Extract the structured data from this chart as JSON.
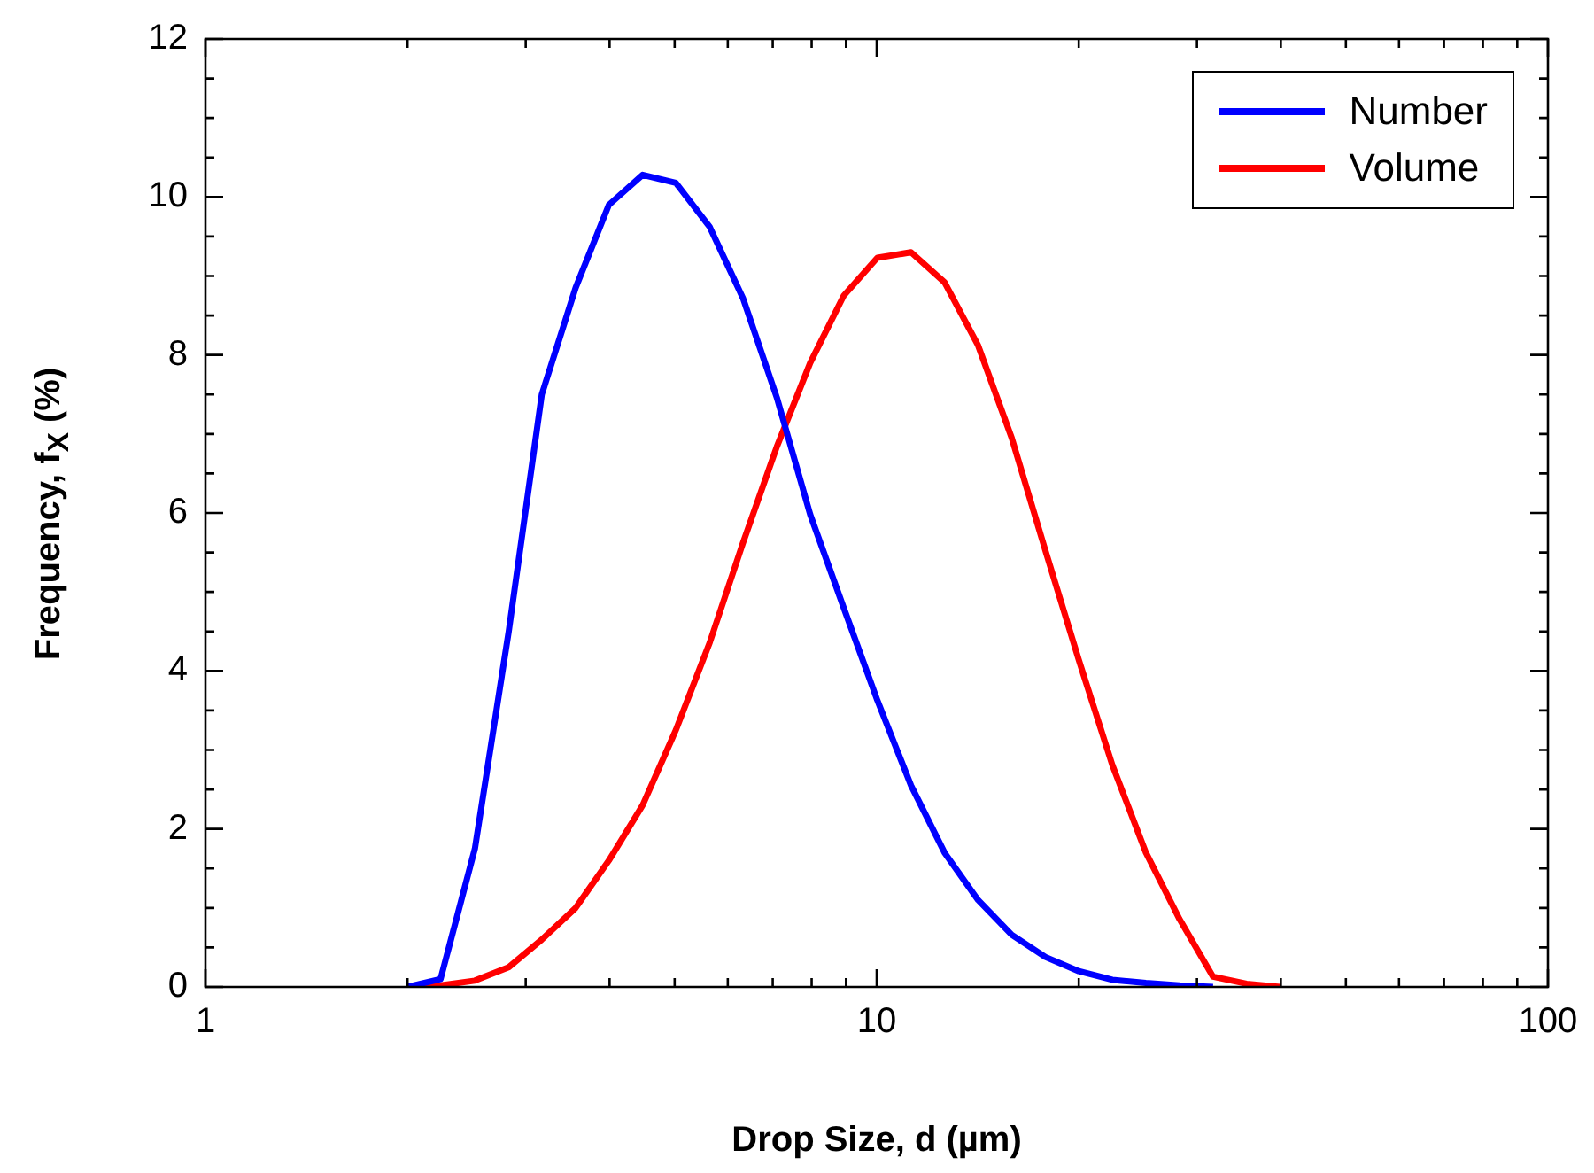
{
  "chart_data": {
    "type": "line",
    "xlabel": "Drop Size, d (µm)",
    "ylabel": "Frequency, f$_{X}$ (%)",
    "log": "x",
    "grid": false,
    "legend": "top right",
    "marker": "none",
    "line_style": "solid",
    "xlim": [
      1,
      100
    ],
    "ylim": [
      0,
      12
    ],
    "xticks": [
      1,
      {
        "value": 2,
        "label": null
      },
      {
        "value": 3,
        "label": null
      },
      {
        "value": 4,
        "label": null
      },
      {
        "value": 5,
        "label": null
      },
      {
        "value": 6,
        "label": null
      },
      {
        "value": 7,
        "label": null
      },
      {
        "value": 8,
        "label": null
      },
      {
        "value": 9,
        "label": null
      },
      10,
      {
        "value": 20,
        "label": null
      },
      {
        "value": 30,
        "label": null
      },
      {
        "value": 40,
        "label": null
      },
      {
        "value": 50,
        "label": null
      },
      {
        "value": 60,
        "label": null
      },
      {
        "value": 70,
        "label": null
      },
      {
        "value": 80,
        "label": null
      },
      {
        "value": 90,
        "label": null
      },
      100
    ],
    "yticks": [
      0,
      {
        "value": 0.5,
        "label": null
      },
      {
        "value": 1,
        "label": null
      },
      {
        "value": 1.5,
        "label": null
      },
      2,
      {
        "value": 2.5,
        "label": null
      },
      {
        "value": 3,
        "label": null
      },
      {
        "value": 3.5,
        "label": null
      },
      4,
      {
        "value": 4.5,
        "label": null
      },
      {
        "value": 5,
        "label": null
      },
      {
        "value": 5.5,
        "label": null
      },
      6,
      {
        "value": 6.5,
        "label": null
      },
      {
        "value": 7,
        "label": null
      },
      {
        "value": 7.5,
        "label": null
      },
      8,
      {
        "value": 8.5,
        "label": null
      },
      {
        "value": 9,
        "label": null
      },
      {
        "value": 9.5,
        "label": null
      },
      10,
      {
        "value": 10.5,
        "label": null
      },
      {
        "value": 11,
        "label": null
      },
      {
        "value": 11.5,
        "label": null
      },
      12
    ],
    "series": [
      {
        "name": "Number",
        "color": "#0000ff",
        "x": [
          2.0,
          2.24,
          2.52,
          2.83,
          3.17,
          3.56,
          3.99,
          4.48,
          5.02,
          5.64,
          6.32,
          7.1,
          7.96,
          8.93,
          10.02,
          11.25,
          12.62,
          14.16,
          15.89,
          17.83,
          20.0,
          22.44,
          25.18,
          28.25,
          31.7
        ],
        "values": [
          0,
          0.1,
          1.75,
          4.5,
          7.5,
          8.85,
          9.9,
          10.28,
          10.18,
          9.62,
          8.72,
          7.46,
          5.98,
          4.8,
          3.63,
          2.55,
          1.7,
          1.1,
          0.66,
          0.38,
          0.2,
          0.09,
          0.05,
          0.02,
          0
        ]
      },
      {
        "name": "Volume",
        "color": "#ff0000",
        "x": [
          2.0,
          2.24,
          2.52,
          2.83,
          3.17,
          3.56,
          3.99,
          4.48,
          5.02,
          5.64,
          6.32,
          7.1,
          7.96,
          8.93,
          10.02,
          11.25,
          12.62,
          14.16,
          15.89,
          17.83,
          20.0,
          22.44,
          25.18,
          28.25,
          31.7,
          35.57,
          39.91
        ],
        "values": [
          0,
          0.02,
          0.08,
          0.25,
          0.6,
          1.0,
          1.6,
          2.3,
          3.25,
          4.36,
          5.62,
          6.84,
          7.9,
          8.75,
          9.23,
          9.3,
          8.92,
          8.12,
          6.95,
          5.53,
          4.14,
          2.81,
          1.7,
          0.86,
          0.13,
          0.04,
          0
        ]
      }
    ]
  }
}
